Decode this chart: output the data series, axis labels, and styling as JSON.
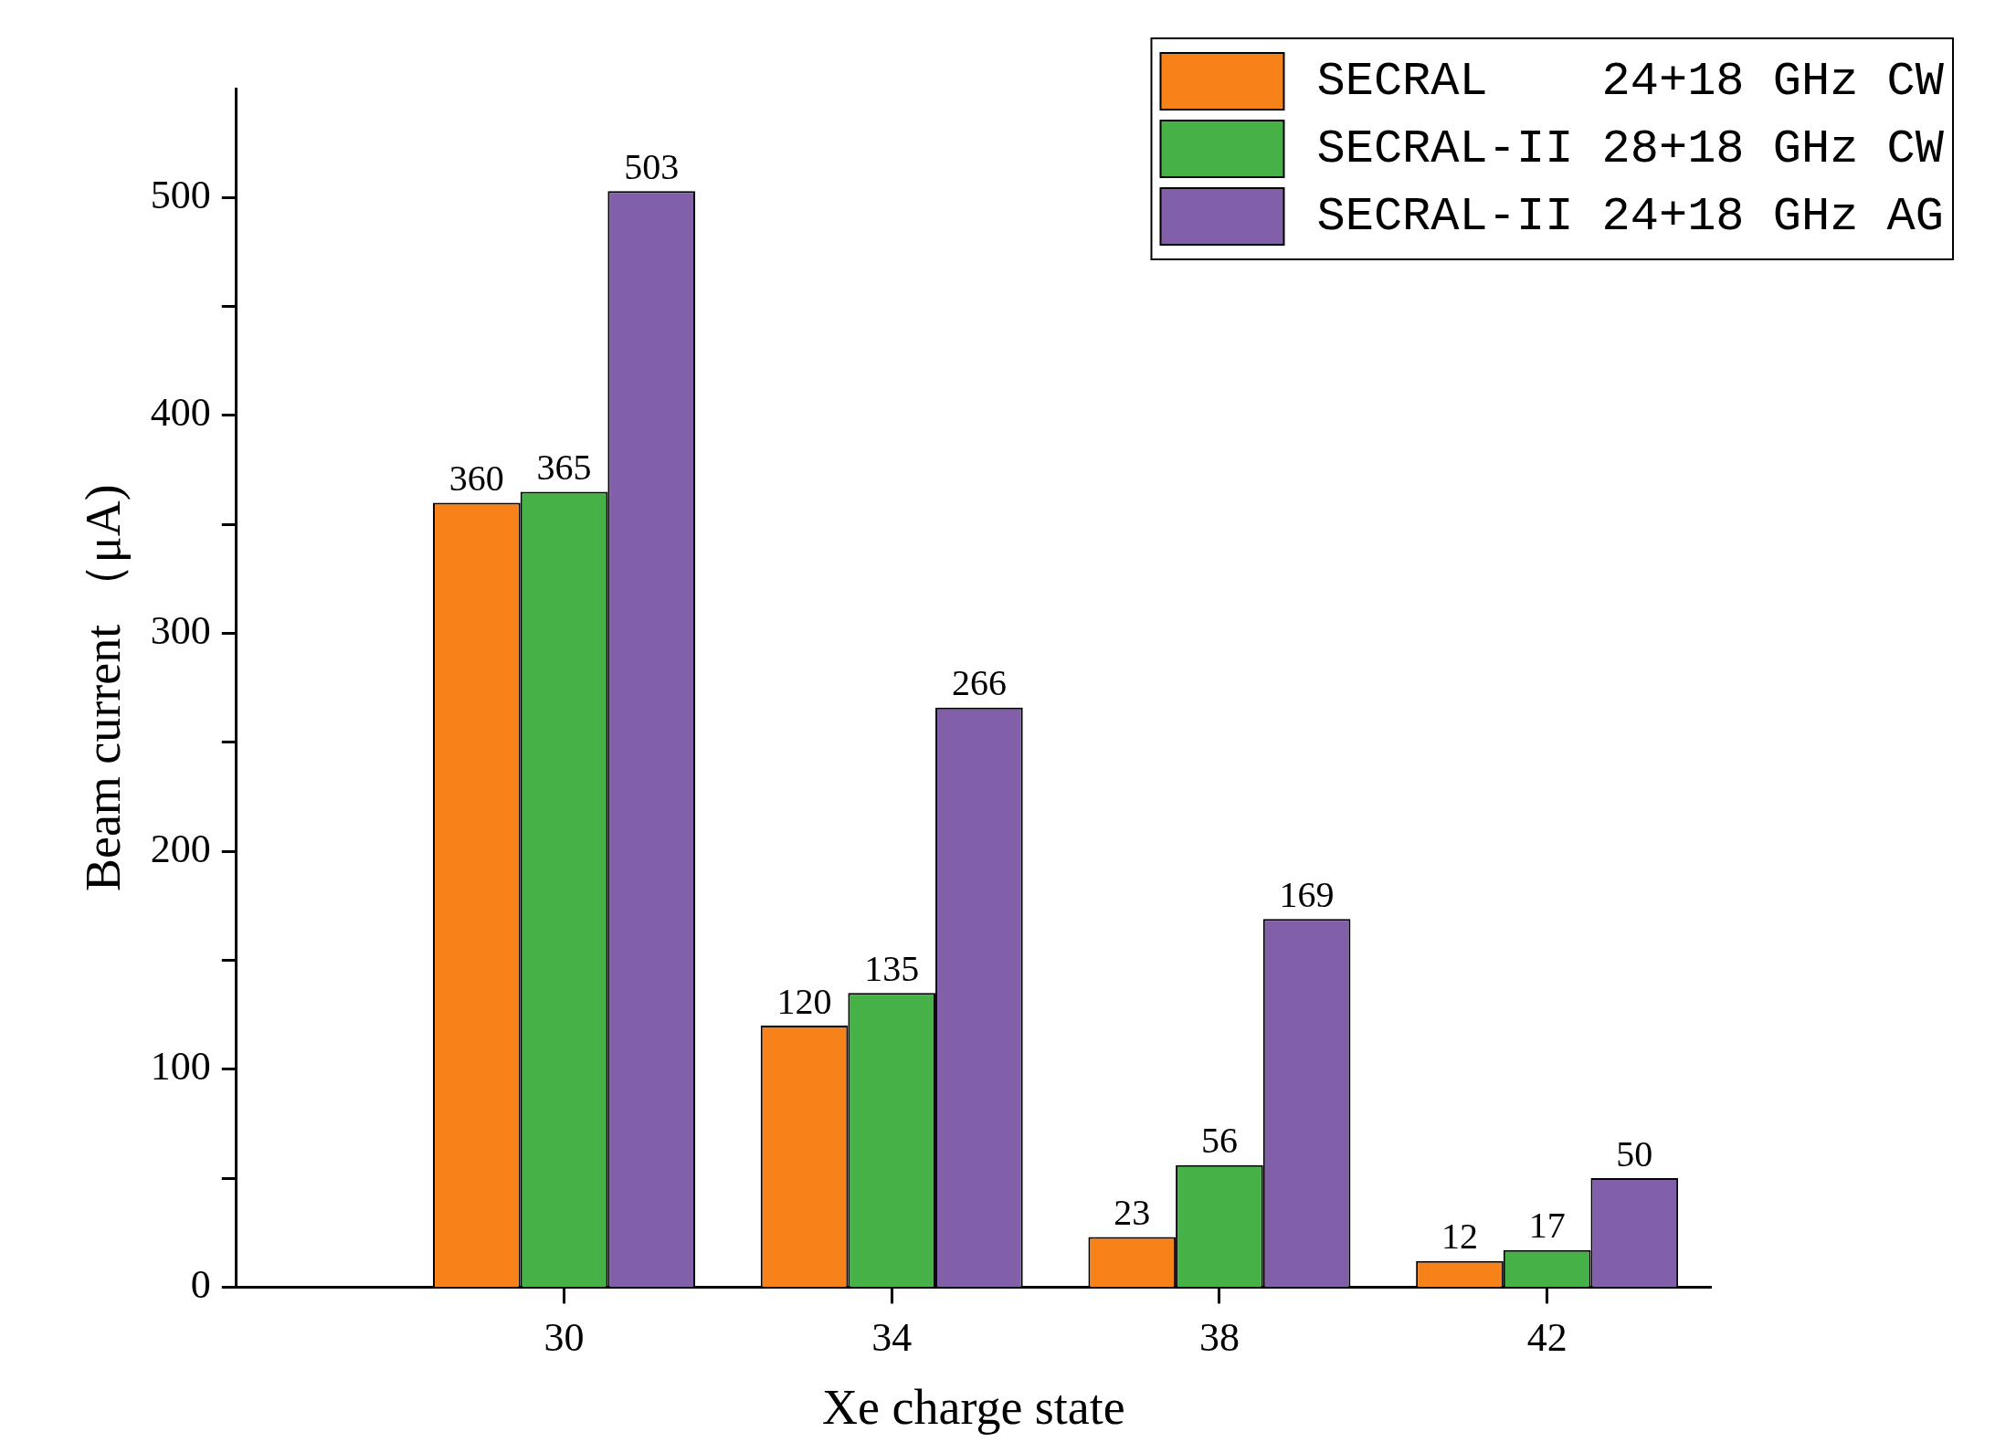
{
  "chart_data": {
    "type": "bar",
    "xlabel": "Xe charge state",
    "ylabel": "Beam current （μA)",
    "x": [
      30,
      34,
      38,
      42
    ],
    "series": [
      {
        "name": "SECRAL    24+18 GHz CW",
        "color": "#f8821a",
        "values": [
          360,
          120,
          23,
          12
        ]
      },
      {
        "name": "SECRAL-II 28+18 GHz CW",
        "color": "#46b146",
        "values": [
          365,
          135,
          56,
          17
        ]
      },
      {
        "name": "SECRAL-II 24+18 GHz AG",
        "color": "#825fa9",
        "values": [
          503,
          266,
          169,
          50
        ]
      }
    ],
    "xlim": [
      26,
      44
    ],
    "xticks": [
      30,
      34,
      38,
      42
    ],
    "ylim": [
      0,
      550
    ],
    "yticks": [
      0,
      {
        "value": 50,
        "label": null
      },
      100,
      {
        "value": 150,
        "label": null
      },
      200,
      {
        "value": 250,
        "label": null
      },
      300,
      {
        "value": 350,
        "label": null
      },
      400,
      {
        "value": 450,
        "label": null
      },
      500
    ],
    "data_labels": true,
    "grid": false,
    "legend": "top right"
  }
}
